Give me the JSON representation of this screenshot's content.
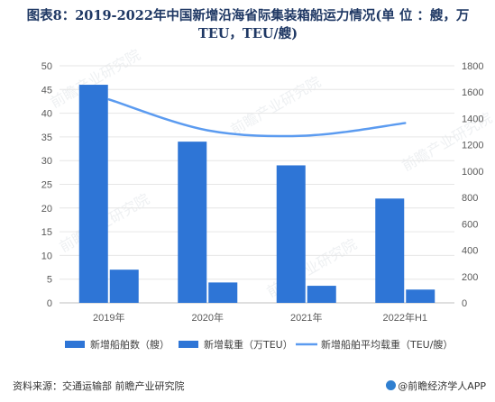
{
  "title": "图表8：2019-2022年中国新增沿海省际集装箱船运力情况(单 位 ：艘，万TEU，TEU/艘)",
  "source": "资料来源：交通运输部 前瞻产业研究院",
  "brand": "@前瞻经济学人APP",
  "watermark": "前瞻产业研究院",
  "colors": {
    "bar1": "#2e75d6",
    "bar2": "#2e75d6",
    "line": "#5b9bf0",
    "grid": "#e6e6e6",
    "title": "#1f3864"
  },
  "chart_data": {
    "type": "bar",
    "title": "图表8：2019-2022年中国新增沿海省际集装箱船运力情况(单 位 ：艘，万TEU，TEU/艘)",
    "categories": [
      "2019年",
      "2020年",
      "2021年",
      "2022年H1"
    ],
    "y_left": {
      "min": 0,
      "max": 50,
      "ticks": [
        0,
        5,
        10,
        15,
        20,
        25,
        30,
        35,
        40,
        45,
        50
      ]
    },
    "y_right": {
      "min": 0,
      "max": 1800,
      "ticks": [
        0,
        200,
        400,
        600,
        800,
        1000,
        1200,
        1400,
        1600,
        1800
      ]
    },
    "series": [
      {
        "name": "新增船舶数（艘）",
        "type": "bar",
        "axis": "left",
        "values": [
          46,
          34,
          29,
          22
        ]
      },
      {
        "name": "新增载重（万TEU）",
        "type": "bar",
        "axis": "left",
        "values": [
          7,
          4.3,
          3.6,
          2.8
        ]
      },
      {
        "name": "新增船舶平均载重（TEU/艘）",
        "type": "line",
        "axis": "right",
        "values": [
          1545,
          1310,
          1270,
          1365
        ]
      }
    ],
    "grid": true,
    "legend": "bottom"
  }
}
